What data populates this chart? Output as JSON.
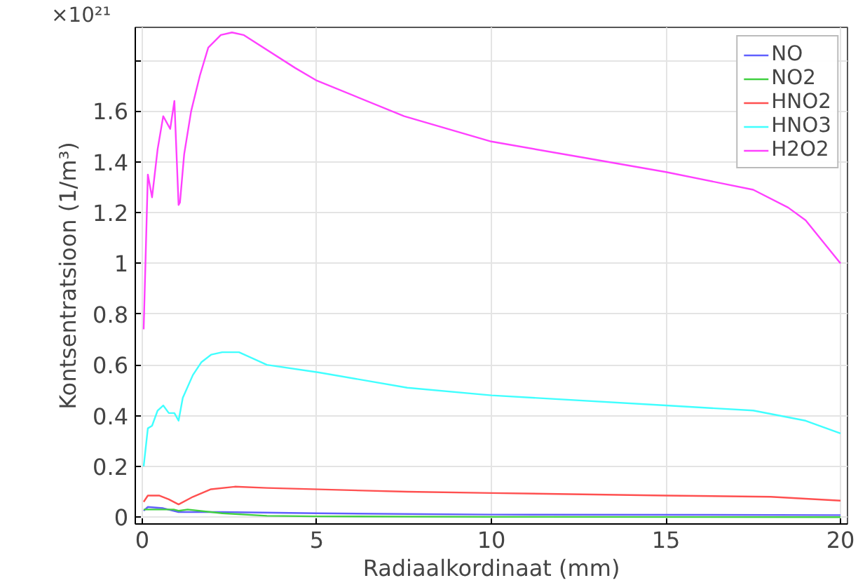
{
  "chart_data": {
    "type": "line",
    "xlabel": "Radiaalkordinaat (mm)",
    "ylabel": "Kontsentratsioon (1/m³)",
    "annotations": [
      "×10²¹"
    ],
    "xlim": [
      -0.2,
      20.2
    ],
    "ylim": [
      -0.027,
      1.93
    ],
    "xticks": [
      0,
      5,
      10,
      15,
      20
    ],
    "yticks": [
      0,
      0.2,
      0.4,
      0.6,
      0.8,
      1,
      1.2,
      1.4,
      1.6,
      {
        "value": 1.8,
        "label": null
      }
    ],
    "grid": true,
    "legend": "top right",
    "series": [
      {
        "name": "NO",
        "color": "#6060ff",
        "x": [
          0.04,
          0.16,
          0.6,
          1.04,
          2.29,
          5,
          10,
          20
        ],
        "values": [
          0.025,
          0.04,
          0.035,
          0.02,
          0.02,
          0.015,
          0.01,
          0.008
        ]
      },
      {
        "name": "NO2",
        "color": "#40d040",
        "x": [
          0.04,
          0.2,
          0.9,
          1.04,
          1.3,
          2.29,
          3.57,
          5,
          10,
          20
        ],
        "values": [
          0.03,
          0.03,
          0.03,
          0.025,
          0.03,
          0.015,
          0.005,
          0.003,
          0.001,
          0.0
        ]
      },
      {
        "name": "HNO2",
        "color": "#ff5050",
        "x": [
          0.04,
          0.16,
          0.48,
          0.76,
          1.04,
          1.45,
          1.97,
          2.65,
          3.57,
          7.59,
          10,
          15,
          18,
          20
        ],
        "values": [
          0.06,
          0.085,
          0.085,
          0.07,
          0.05,
          0.08,
          0.11,
          0.12,
          0.115,
          0.1,
          0.095,
          0.085,
          0.08,
          0.065
        ]
      },
      {
        "name": "HNO3",
        "color": "#40ffff",
        "x": [
          0.04,
          0.16,
          0.28,
          0.44,
          0.6,
          0.76,
          0.92,
          1.04,
          1.16,
          1.45,
          1.69,
          1.97,
          2.29,
          2.77,
          3.57,
          5.06,
          7.59,
          10,
          15,
          17.5,
          19,
          20
        ],
        "values": [
          0.2,
          0.35,
          0.36,
          0.42,
          0.44,
          0.41,
          0.41,
          0.38,
          0.47,
          0.56,
          0.61,
          0.64,
          0.65,
          0.65,
          0.6,
          0.57,
          0.51,
          0.48,
          0.44,
          0.42,
          0.38,
          0.33
        ]
      },
      {
        "name": "H2O2",
        "color": "#ff40ff",
        "x": [
          0.04,
          0.16,
          0.28,
          0.44,
          0.6,
          0.8,
          0.92,
          1.04,
          1.08,
          1.2,
          1.4,
          1.65,
          1.89,
          2.25,
          2.57,
          2.9,
          4.38,
          5,
          7.5,
          10,
          12.5,
          15,
          17.5,
          18.5,
          19,
          20
        ],
        "values": [
          0.74,
          1.35,
          1.26,
          1.45,
          1.58,
          1.53,
          1.64,
          1.23,
          1.24,
          1.43,
          1.6,
          1.74,
          1.85,
          1.9,
          1.91,
          1.9,
          1.77,
          1.72,
          1.58,
          1.48,
          1.42,
          1.36,
          1.29,
          1.22,
          1.17,
          1.0
        ]
      }
    ]
  }
}
